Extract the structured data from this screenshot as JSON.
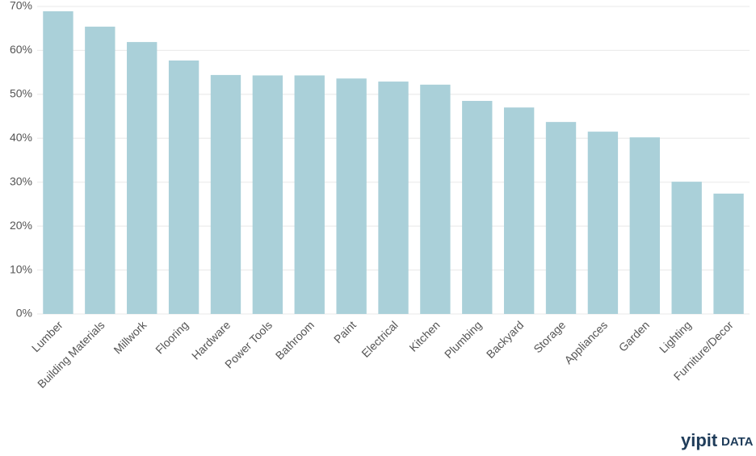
{
  "chart_data": {
    "type": "bar",
    "categories": [
      "Lumber",
      "Building Materials",
      "Millwork",
      "Flooring",
      "Hardware",
      "Power Tools",
      "Bathroom",
      "Paint",
      "Electrical",
      "Kitchen",
      "Plumbing",
      "Backyard",
      "Storage",
      "Appliances",
      "Garden",
      "Lighting",
      "Furniture/Decor"
    ],
    "values": [
      68.9,
      65.4,
      61.9,
      57.7,
      54.4,
      54.3,
      54.3,
      53.6,
      52.9,
      52.2,
      48.5,
      47.0,
      43.7,
      41.5,
      40.2,
      30.1,
      27.4
    ],
    "color": "#aad0d9",
    "ylim": [
      0,
      70
    ],
    "yticks": [
      {
        "value": 0,
        "label": "0%"
      },
      {
        "value": 10,
        "label": "10%"
      },
      {
        "value": 20,
        "label": "20%"
      },
      {
        "value": 30,
        "label": "30%"
      },
      {
        "value": 40,
        "label": "40%"
      },
      {
        "value": 50,
        "label": "50%"
      },
      {
        "value": 60,
        "label": "60%"
      },
      {
        "value": 70,
        "label": "70%"
      }
    ],
    "grid": true
  },
  "logo": {
    "brand": "yipit",
    "suffix": "DATA"
  }
}
